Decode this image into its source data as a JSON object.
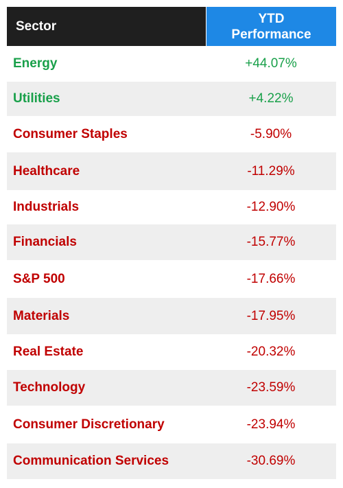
{
  "header": {
    "sector": "Sector",
    "perf_line1": "YTD",
    "perf_line2": "Performance"
  },
  "colors": {
    "positive": "#19a04a",
    "negative": "#c00000",
    "header_dark": "#1f1f1f",
    "header_blue": "#1e88e5"
  },
  "chart_data": {
    "type": "table",
    "columns": [
      "Sector",
      "YTD Performance"
    ],
    "rows": [
      {
        "sector": "Energy",
        "value": "+44.07%",
        "num": 44.07
      },
      {
        "sector": "Utilities",
        "value": "+4.22%",
        "num": 4.22
      },
      {
        "sector": "Consumer Staples",
        "value": "-5.90%",
        "num": -5.9
      },
      {
        "sector": "Healthcare",
        "value": "-11.29%",
        "num": -11.29
      },
      {
        "sector": "Industrials",
        "value": "-12.90%",
        "num": -12.9
      },
      {
        "sector": "Financials",
        "value": "-15.77%",
        "num": -15.77
      },
      {
        "sector": "S&P 500",
        "value": "-17.66%",
        "num": -17.66
      },
      {
        "sector": "Materials",
        "value": "-17.95%",
        "num": -17.95
      },
      {
        "sector": "Real Estate",
        "value": "-20.32%",
        "num": -20.32
      },
      {
        "sector": "Technology",
        "value": "-23.59%",
        "num": -23.59
      },
      {
        "sector": "Consumer Discretionary",
        "value": "-23.94%",
        "num": -23.94
      },
      {
        "sector": "Communication Services",
        "value": "-30.69%",
        "num": -30.69
      }
    ]
  }
}
